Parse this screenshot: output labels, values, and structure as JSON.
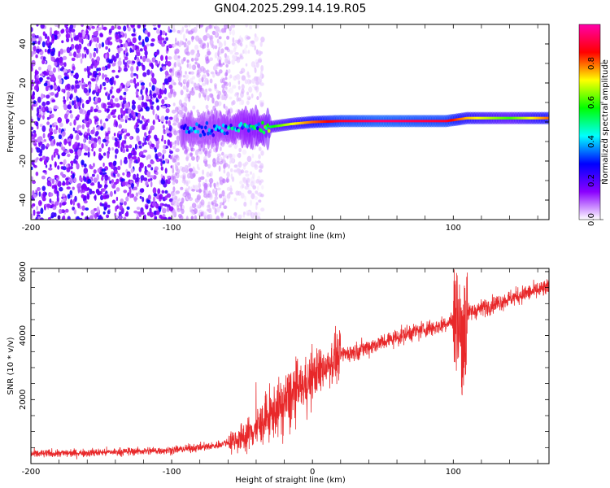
{
  "title": "GN04.2025.299.14.19.R05",
  "chart_data": [
    {
      "type": "heatmap",
      "name": "spectrogram",
      "xlabel": "Height of straight line (km)",
      "ylabel": "Frequency (Hz)",
      "xlim": [
        -200,
        168
      ],
      "ylim": [
        -50,
        50
      ],
      "xticks": [
        -200,
        -100,
        0,
        100
      ],
      "yticks": [
        -40,
        -20,
        0,
        20,
        40
      ],
      "colorbar": {
        "label": "Normalized spectral amplitude",
        "range": [
          0,
          1
        ],
        "ticks": [
          0.0,
          0.2,
          0.4,
          0.6,
          0.8
        ],
        "colors": [
          "#ffffff",
          "#8a00ff",
          "#0000ff",
          "#00ffff",
          "#00ff00",
          "#ffff00",
          "#ff0000",
          "#ff00aa"
        ]
      },
      "signal_track": [
        {
          "x": -93,
          "freq": -4,
          "amp": 0.35
        },
        {
          "x": -80,
          "freq": -4,
          "amp": 0.3
        },
        {
          "x": -65,
          "freq": -3,
          "amp": 0.35
        },
        {
          "x": -50,
          "freq": -3,
          "amp": 0.4
        },
        {
          "x": -35,
          "freq": -3,
          "amp": 0.45
        },
        {
          "x": -25,
          "freq": -2,
          "amp": 0.6
        },
        {
          "x": -15,
          "freq": -1,
          "amp": 0.7
        },
        {
          "x": 0,
          "freq": 0,
          "amp": 0.8
        },
        {
          "x": 20,
          "freq": 0.5,
          "amp": 0.9
        },
        {
          "x": 50,
          "freq": 0.5,
          "amp": 0.95
        },
        {
          "x": 95,
          "freq": 0.5,
          "amp": 0.9
        },
        {
          "x": 110,
          "freq": 2,
          "amp": 0.75
        },
        {
          "x": 140,
          "freq": 2,
          "amp": 0.6
        },
        {
          "x": 168,
          "freq": 2,
          "amp": 0.8
        }
      ]
    },
    {
      "type": "line",
      "name": "snr",
      "xlabel": "Height of straight line (km)",
      "ylabel": "SNR (10 * v/v)",
      "xlim": [
        -200,
        168
      ],
      "ylim": [
        0,
        6100
      ],
      "xticks": [
        -200,
        -100,
        0,
        100
      ],
      "yticks": [
        2000,
        4000,
        6000
      ],
      "series": [
        {
          "name": "SNR",
          "color": "#e8282a",
          "x": [
            -200,
            -150,
            -100,
            -70,
            -50,
            -40,
            -30,
            -20,
            -10,
            0,
            10,
            20,
            30,
            50,
            70,
            90,
            100,
            103,
            106,
            110,
            130,
            150,
            168
          ],
          "y": [
            300,
            350,
            420,
            550,
            800,
            1100,
            1500,
            1900,
            2300,
            2700,
            3100,
            3400,
            3500,
            3800,
            4100,
            4300,
            4500,
            4600,
            3500,
            4700,
            5000,
            5300,
            5500
          ]
        }
      ]
    }
  ]
}
